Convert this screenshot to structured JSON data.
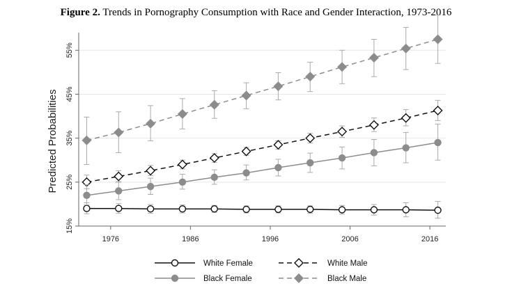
{
  "title_bold": "Figure 2.",
  "title_rest": " Trends in Pornography Consumption with Race and Gender Interaction, 1973-2016",
  "colors": {
    "black": "#111111",
    "gray": "#8c8c8c",
    "ci": "#aaaaaa",
    "axis": "#666666",
    "grid": "#e6e6e6"
  },
  "chart_data": {
    "type": "line",
    "ylabel": "Predicted Probabilities",
    "xlim": [
      1972,
      2018
    ],
    "ylim": [
      15,
      59
    ],
    "xticks": [
      1976,
      1986,
      1996,
      2006,
      2016
    ],
    "xtick_labels": [
      "1976",
      "1986",
      "1996",
      "2006",
      "2016"
    ],
    "yticks": [
      15,
      25,
      35,
      45,
      55
    ],
    "ytick_labels": [
      "15%",
      "25%",
      "35%",
      "45%",
      "55%"
    ],
    "grid": true,
    "x": [
      1973,
      1977,
      1981,
      1985,
      1989,
      1993,
      1997,
      2001,
      2005,
      2009,
      2013,
      2017
    ],
    "series": [
      {
        "name": "White Female",
        "style": "solid",
        "color": "black",
        "marker": "circle-open",
        "values": [
          19.0,
          19.0,
          18.9,
          18.9,
          18.9,
          18.8,
          18.8,
          18.8,
          18.7,
          18.7,
          18.7,
          18.6
        ],
        "ci_low": [
          17.8,
          17.9,
          17.9,
          18.0,
          18.1,
          18.0,
          18.0,
          17.9,
          17.7,
          17.5,
          17.1,
          16.8
        ],
        "ci_high": [
          20.3,
          20.1,
          19.9,
          19.8,
          19.7,
          19.6,
          19.6,
          19.6,
          19.7,
          19.9,
          20.3,
          20.6
        ]
      },
      {
        "name": "White Male",
        "style": "dashed",
        "color": "black",
        "marker": "diamond-open",
        "values": [
          25.0,
          26.3,
          27.6,
          29.0,
          30.5,
          32.0,
          33.5,
          35.0,
          36.5,
          38.0,
          39.6,
          41.3
        ],
        "ci_low": [
          23.5,
          25.0,
          26.5,
          28.0,
          29.5,
          31.1,
          32.5,
          33.9,
          35.2,
          36.5,
          37.8,
          39.0
        ],
        "ci_high": [
          26.6,
          27.6,
          28.8,
          30.0,
          31.5,
          32.9,
          34.4,
          36.1,
          37.8,
          39.6,
          41.5,
          43.6
        ]
      },
      {
        "name": "Black Female",
        "style": "solid",
        "color": "gray",
        "marker": "circle-filled",
        "values": [
          22.0,
          23.0,
          24.0,
          25.0,
          26.1,
          27.1,
          28.3,
          29.4,
          30.5,
          31.7,
          32.8,
          34.0
        ],
        "ci_low": [
          19.8,
          21.0,
          22.2,
          23.4,
          24.5,
          25.5,
          26.4,
          27.2,
          28.0,
          28.7,
          29.4,
          30.0
        ],
        "ci_high": [
          24.4,
          25.1,
          25.9,
          26.8,
          27.8,
          28.9,
          30.2,
          31.6,
          33.0,
          34.7,
          36.3,
          38.2
        ]
      },
      {
        "name": "Black Male",
        "style": "dashed",
        "color": "gray",
        "marker": "diamond-filled",
        "values": [
          34.5,
          36.3,
          38.3,
          40.5,
          42.6,
          44.7,
          46.8,
          49.0,
          51.2,
          53.3,
          55.4,
          57.5
        ],
        "ci_low": [
          29.0,
          31.7,
          34.4,
          37.1,
          39.5,
          41.7,
          43.7,
          45.6,
          47.4,
          49.0,
          50.6,
          52.0
        ],
        "ci_high": [
          39.8,
          41.0,
          42.4,
          44.0,
          45.8,
          47.6,
          49.9,
          52.3,
          55.0,
          57.5,
          60.2,
          63.0
        ]
      }
    ]
  },
  "legend": [
    {
      "label": "White Female"
    },
    {
      "label": "White Male"
    },
    {
      "label": "Black Female"
    },
    {
      "label": "Black Male"
    }
  ]
}
